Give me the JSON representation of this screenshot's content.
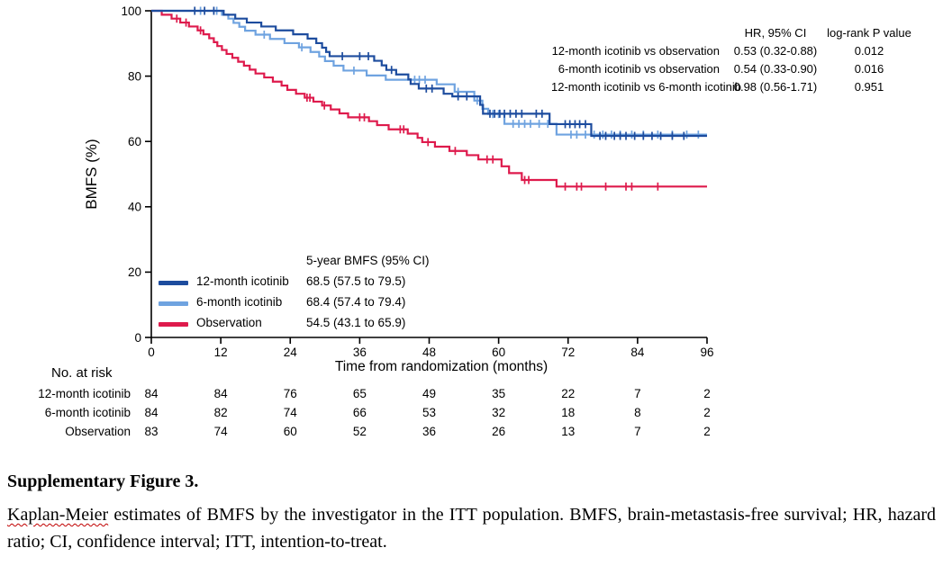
{
  "stats": {
    "header_hr": "HR, 95% CI",
    "header_p": "log-rank P value",
    "rows": [
      {
        "label": "12-month icotinib vs observation",
        "hr": "0.53 (0.32-0.88)",
        "p": "0.012"
      },
      {
        "label": "6-month icotinib vs observation",
        "hr": "0.54 (0.33-0.90)",
        "p": "0.016"
      },
      {
        "label": "12-month icotinib vs 6-month icotinib",
        "hr": "0.98 (0.56-1.71)",
        "p": "0.951"
      }
    ]
  },
  "legend": {
    "header": "5-year BMFS (95% CI)"
  },
  "risk_table": {
    "title": "No. at risk",
    "timepoints": [
      0,
      12,
      24,
      36,
      48,
      60,
      72,
      84,
      96
    ],
    "rows": [
      {
        "label": "12-month icotinib",
        "counts": [
          84,
          84,
          76,
          65,
          49,
          35,
          22,
          7,
          2
        ]
      },
      {
        "label": "6-month icotinib",
        "counts": [
          84,
          82,
          74,
          66,
          53,
          32,
          18,
          8,
          2
        ]
      },
      {
        "label": "Observation",
        "counts": [
          83,
          74,
          60,
          52,
          36,
          26,
          13,
          7,
          2
        ]
      }
    ]
  },
  "caption": {
    "title": "Supplementary Figure 3.",
    "misspelled_term": "Kaplan-Meier",
    "body": " estimates of BMFS by the investigator in the ITT population. BMFS, brain-metastasis-free survival; HR, hazard ratio; CI, confidence interval; ITT, intention-to-treat."
  },
  "chart_data": {
    "type": "line",
    "subtype": "kaplan-meier-step",
    "title": "",
    "xlabel": "Time from randomization (months)",
    "ylabel": "BMFS (%)",
    "xlim": [
      0,
      96
    ],
    "ylim": [
      0,
      100
    ],
    "xticks": [
      0,
      12,
      24,
      36,
      48,
      60,
      72,
      84,
      96
    ],
    "yticks": [
      0,
      20,
      40,
      60,
      80,
      100
    ],
    "grid": false,
    "legend_position": "lower-left-inside",
    "series": [
      {
        "name": "12-month icotinib",
        "color": "#1D4C9E",
        "five_year_ci": "68.5 (57.5 to 79.5)",
        "steps": [
          [
            12.5,
            98.8
          ],
          [
            14.5,
            97.6
          ],
          [
            16.5,
            96.4
          ],
          [
            19,
            95.2
          ],
          [
            21.5,
            94
          ],
          [
            24.5,
            92.8
          ],
          [
            27,
            91.5
          ],
          [
            28.5,
            90.1
          ],
          [
            29.5,
            88.7
          ],
          [
            30.2,
            87.4
          ],
          [
            30.8,
            86.1
          ],
          [
            38.5,
            84.7
          ],
          [
            39.8,
            83.3
          ],
          [
            40.6,
            81.9
          ],
          [
            42.3,
            80.5
          ],
          [
            44.4,
            79
          ],
          [
            44.8,
            77.6
          ],
          [
            46.2,
            76.2
          ],
          [
            50.5,
            74.6
          ],
          [
            52,
            73.8
          ],
          [
            56.8,
            71.2
          ],
          [
            57.3,
            68.5
          ],
          [
            68.8,
            65.3
          ],
          [
            76,
            61.7
          ]
        ],
        "censors": [
          [
            7.5,
            100
          ],
          [
            9.2,
            100
          ],
          [
            10.8,
            100
          ],
          [
            33,
            86.1
          ],
          [
            36,
            86.1
          ],
          [
            37.5,
            86.1
          ],
          [
            41.5,
            81.9
          ],
          [
            47.5,
            76.2
          ],
          [
            48.5,
            76.2
          ],
          [
            53,
            73.8
          ],
          [
            54.5,
            73.8
          ],
          [
            58.5,
            68.5
          ],
          [
            59.3,
            68.5
          ],
          [
            60.2,
            68.5
          ],
          [
            61,
            68.5
          ],
          [
            62,
            68.5
          ],
          [
            63,
            68.5
          ],
          [
            64,
            68.5
          ],
          [
            66.5,
            68.5
          ],
          [
            67.5,
            68.5
          ],
          [
            71.5,
            65.3
          ],
          [
            72.3,
            65.3
          ],
          [
            73.2,
            65.3
          ],
          [
            74,
            65.3
          ],
          [
            75,
            65.3
          ],
          [
            77.5,
            61.7
          ],
          [
            78.5,
            61.7
          ],
          [
            80,
            61.7
          ],
          [
            81,
            61.7
          ],
          [
            82,
            61.7
          ],
          [
            83.5,
            61.7
          ],
          [
            85,
            61.7
          ],
          [
            86.5,
            61.7
          ],
          [
            88,
            61.7
          ],
          [
            90,
            61.7
          ],
          [
            92,
            61.7
          ]
        ]
      },
      {
        "name": "6-month icotinib",
        "color": "#6FA3E0",
        "five_year_ci": "68.4 (57.4 to 79.4)",
        "steps": [
          [
            12.2,
            98.8
          ],
          [
            13.3,
            97.6
          ],
          [
            14.2,
            96.3
          ],
          [
            15.2,
            95.1
          ],
          [
            16.2,
            93.9
          ],
          [
            18,
            92.7
          ],
          [
            20.5,
            91.4
          ],
          [
            23,
            90.1
          ],
          [
            25.5,
            88.8
          ],
          [
            27.5,
            87.4
          ],
          [
            29,
            86
          ],
          [
            30,
            84.6
          ],
          [
            31.5,
            83.2
          ],
          [
            33.2,
            81.7
          ],
          [
            37.2,
            80.2
          ],
          [
            40.5,
            78.9
          ],
          [
            49.3,
            77.5
          ],
          [
            52.4,
            75.2
          ],
          [
            55.8,
            72.5
          ],
          [
            57.2,
            70
          ],
          [
            58.2,
            68.4
          ],
          [
            61,
            65.4
          ],
          [
            70,
            62.1
          ]
        ],
        "censors": [
          [
            8.5,
            100
          ],
          [
            11.3,
            100
          ],
          [
            19.5,
            92.7
          ],
          [
            26,
            88.8
          ],
          [
            35,
            81.7
          ],
          [
            45.5,
            78.9
          ],
          [
            46.3,
            78.9
          ],
          [
            47.3,
            78.9
          ],
          [
            53,
            75.2
          ],
          [
            56.3,
            72.5
          ],
          [
            59,
            68.4
          ],
          [
            60,
            68.4
          ],
          [
            62.5,
            65.4
          ],
          [
            63.5,
            65.4
          ],
          [
            64.5,
            65.4
          ],
          [
            65.5,
            65.4
          ],
          [
            67,
            65.4
          ],
          [
            68.5,
            65.4
          ],
          [
            72.5,
            62.1
          ],
          [
            73.5,
            62.1
          ],
          [
            75,
            62.1
          ],
          [
            76.5,
            62.1
          ],
          [
            78,
            62.1
          ],
          [
            79.5,
            62.1
          ],
          [
            81,
            62.1
          ],
          [
            83,
            62.1
          ],
          [
            85,
            62.1
          ],
          [
            87.5,
            62.1
          ],
          [
            90,
            62.1
          ],
          [
            92.5,
            62.1
          ],
          [
            94.5,
            62.1
          ]
        ],
        "note": ""
      },
      {
        "name": "Observation",
        "color": "#DE1A4C",
        "five_year_ci": "54.5 (43.1 to 65.9)",
        "steps": [
          [
            1.8,
            98.8
          ],
          [
            3.5,
            97.6
          ],
          [
            5,
            96.4
          ],
          [
            6.5,
            95.2
          ],
          [
            8,
            94
          ],
          [
            9,
            92.8
          ],
          [
            10,
            91.6
          ],
          [
            10.8,
            90.4
          ],
          [
            11.4,
            89.2
          ],
          [
            12.2,
            88
          ],
          [
            13,
            86.8
          ],
          [
            14,
            85.6
          ],
          [
            15,
            84.4
          ],
          [
            16,
            83.2
          ],
          [
            17,
            82
          ],
          [
            18,
            80.8
          ],
          [
            19.5,
            79.6
          ],
          [
            21,
            78.3
          ],
          [
            22.5,
            77.1
          ],
          [
            23.5,
            75.8
          ],
          [
            25,
            74.6
          ],
          [
            26.5,
            73.4
          ],
          [
            28,
            72.2
          ],
          [
            29.5,
            71
          ],
          [
            31,
            69.8
          ],
          [
            32.5,
            68.6
          ],
          [
            34,
            67.4
          ],
          [
            37.6,
            66.2
          ],
          [
            39,
            65
          ],
          [
            41,
            63.7
          ],
          [
            44.3,
            62.4
          ],
          [
            46,
            61.1
          ],
          [
            46.8,
            59.8
          ],
          [
            49,
            58.4
          ],
          [
            51.5,
            57.1
          ],
          [
            54.5,
            55.8
          ],
          [
            56.5,
            54.5
          ],
          [
            60.5,
            52.4
          ],
          [
            61.8,
            50.3
          ],
          [
            64,
            48.2
          ],
          [
            70,
            46.2
          ]
        ],
        "censors": [
          [
            4.4,
            97.6
          ],
          [
            6,
            96.4
          ],
          [
            8.5,
            94
          ],
          [
            26.9,
            73.4
          ],
          [
            27.4,
            73.4
          ],
          [
            29.9,
            71
          ],
          [
            36,
            67.4
          ],
          [
            36.8,
            67.4
          ],
          [
            43,
            63.7
          ],
          [
            43.6,
            63.7
          ],
          [
            47.8,
            59.8
          ],
          [
            52.5,
            57.1
          ],
          [
            58,
            54.5
          ],
          [
            59,
            54.5
          ],
          [
            64.5,
            48.2
          ],
          [
            65.2,
            48.2
          ],
          [
            71.5,
            46.2
          ],
          [
            73.5,
            46.2
          ],
          [
            74.3,
            46.2
          ],
          [
            78.5,
            46.2
          ],
          [
            82,
            46.2
          ],
          [
            83,
            46.2
          ],
          [
            87.5,
            46.2
          ]
        ]
      }
    ]
  }
}
